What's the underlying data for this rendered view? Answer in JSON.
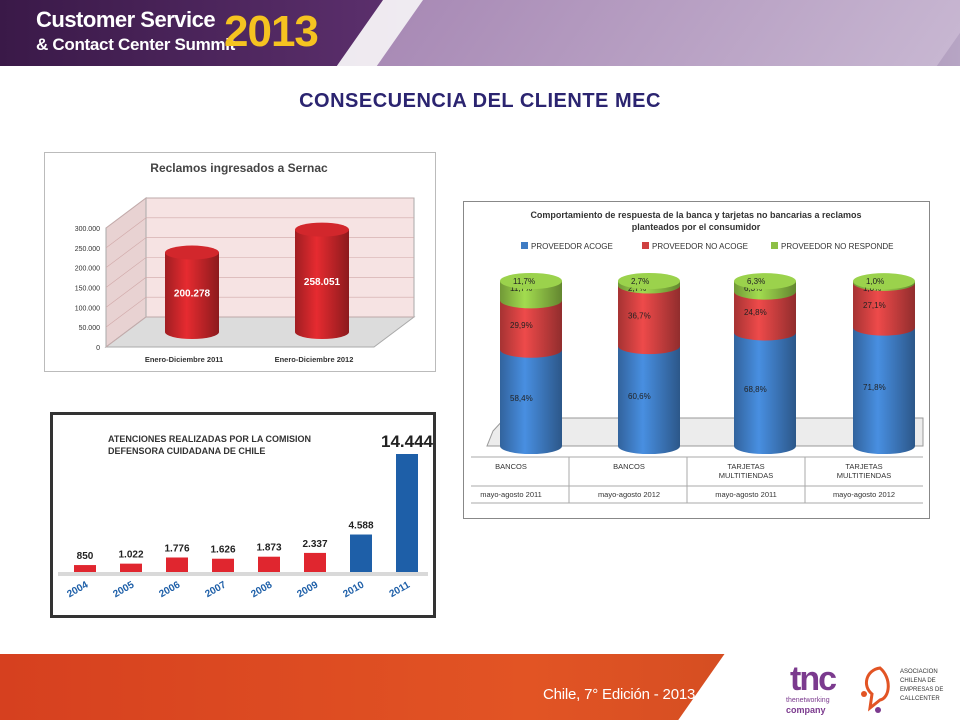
{
  "header": {
    "line1": "Customer Service",
    "line2": "& Contact Center Summit",
    "year": "2013"
  },
  "slide_title": "CONSECUENCIA DEL CLIENTE MEC",
  "footer": {
    "edition": "Chile, 7° Edición - 2013",
    "tnc_logo": "tnc",
    "tnc_sub1": "thenetworking",
    "tnc_sub2": "company",
    "assoc_lines": [
      "ASOCIACION",
      "CHILENA DE",
      "EMPRESAS DE",
      "CALLCENTER"
    ]
  },
  "chart_data": [
    {
      "type": "bar",
      "title": "Reclamos ingresados a Sernac",
      "categories": [
        "Enero-Diciembre 2011",
        "Enero-Diciembre 2012"
      ],
      "values": [
        200278,
        258051
      ],
      "value_labels": [
        "200.278",
        "258.051"
      ],
      "ylim": [
        0,
        300000
      ],
      "ytick_values": [
        0,
        50000,
        100000,
        150000,
        200000,
        250000,
        300000
      ],
      "yticks": [
        "0",
        "50.000",
        "100.000",
        "150.000",
        "200.000",
        "250.000",
        "300.000"
      ],
      "colors": {
        "bar": "#c8252a",
        "wall": "#f6e3e3",
        "border": "#bbbbbb"
      }
    },
    {
      "type": "bar",
      "title": "ATENCIONES REALIZADAS POR LA COMISION DEFENSORA CUIDADANA DE CHILE",
      "title_lines": [
        "ATENCIONES REALIZADAS POR LA COMISION",
        "DEFENSORA CUIDADANA DE CHILE"
      ],
      "categories": [
        "2004",
        "2005",
        "2006",
        "2007",
        "2008",
        "2009",
        "2010",
        "2011"
      ],
      "values": [
        850,
        1022,
        1776,
        1626,
        1873,
        2337,
        4588,
        14444
      ],
      "value_labels": [
        "850",
        "1.022",
        "1.776",
        "1.626",
        "1.873",
        "2.337",
        "4.588",
        "14.444"
      ],
      "bar_colors": [
        "#e0262f",
        "#e0262f",
        "#e0262f",
        "#e0262f",
        "#e0262f",
        "#e0262f",
        "#1e5fa8",
        "#1e5fa8"
      ],
      "colors": {
        "axis_labels": "#1e5fa8",
        "border": "#333333"
      }
    },
    {
      "type": "bar",
      "stacked": true,
      "title": "Comportamiento de respuesta de la banca y tarjetas no bancarias a reclamos planteados por el consumidor",
      "title_lines": [
        "Comportamiento de respuesta de la banca y tarjetas no bancarias a reclamos",
        "planteados por el consumidor"
      ],
      "categories": [
        "BANCOS",
        "BANCOS",
        "TARJETAS MULTITIENDAS",
        "TARJETAS MULTITIENDAS"
      ],
      "category_lines": [
        [
          "BANCOS"
        ],
        [
          "BANCOS"
        ],
        [
          "TARJETAS",
          "MULTITIENDAS"
        ],
        [
          "TARJETAS",
          "MULTITIENDAS"
        ]
      ],
      "subcategories": [
        "mayo-agosto 2011",
        "mayo-agosto 2012",
        "mayo-agosto 2011",
        "mayo-agosto 2012"
      ],
      "series": [
        {
          "name": "PROVEEDOR ACOGE",
          "values": [
            58.4,
            60.6,
            68.8,
            71.8
          ],
          "labels": [
            "58,4%",
            "60,6%",
            "68,8%",
            "71,8%"
          ],
          "color": "#3f7cc4"
        },
        {
          "name": "PROVEEDOR NO ACOGE",
          "values": [
            29.9,
            36.7,
            24.8,
            27.1
          ],
          "labels": [
            "29,9%",
            "36,7%",
            "24,8%",
            "27,1%"
          ],
          "color": "#cf4040"
        },
        {
          "name": "PROVEEDOR NO RESPONDE",
          "values": [
            11.7,
            2.7,
            6.3,
            1.0
          ],
          "labels": [
            "11,7%",
            "2,7%",
            "6,3%",
            "1,0%"
          ],
          "color": "#8dbf45"
        }
      ],
      "legend": "top"
    }
  ]
}
